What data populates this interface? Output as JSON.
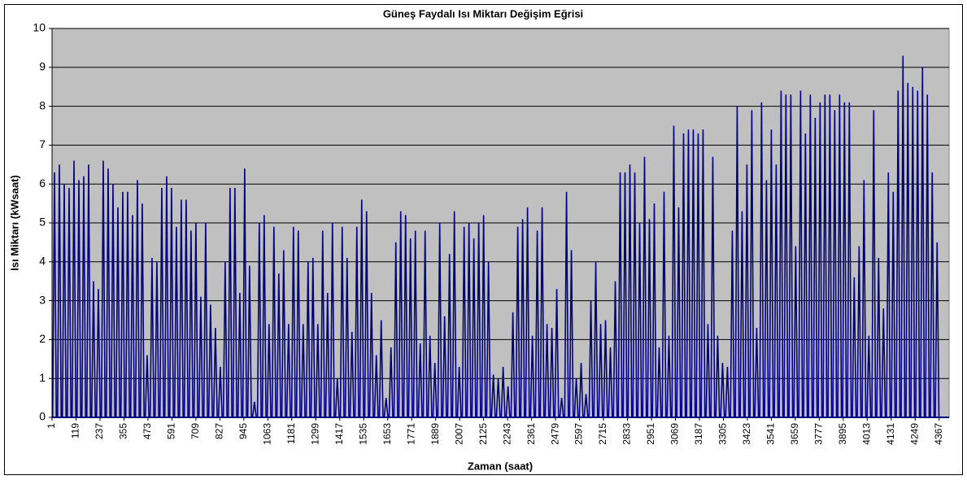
{
  "chart_data": {
    "type": "spike",
    "title": "Güneş Faydalı Isı Miktarı Değişim Eğrisi",
    "x_label": "Zaman (saat)",
    "y_label": "Isı Miktarı (kWsaat)",
    "color": "#000080",
    "plot_background": "#c0c0c0",
    "grid": true,
    "xlim": [
      1,
      4416
    ],
    "ylim": [
      0,
      10
    ],
    "yticks": [
      0,
      1,
      2,
      3,
      4,
      5,
      6,
      7,
      8,
      9,
      10
    ],
    "xticks": [
      1,
      119,
      237,
      355,
      473,
      591,
      709,
      827,
      945,
      1063,
      1181,
      1299,
      1417,
      1535,
      1653,
      1771,
      1889,
      2007,
      2125,
      2243,
      2361,
      2479,
      2597,
      2715,
      2833,
      2951,
      3069,
      3187,
      3305,
      3423,
      3541,
      3659,
      3777,
      3895,
      4013,
      4131,
      4249,
      4367
    ],
    "x": [
      13,
      37,
      61,
      85,
      109,
      133,
      157,
      181,
      205,
      229,
      253,
      277,
      301,
      325,
      349,
      373,
      397,
      421,
      445,
      469,
      493,
      517,
      541,
      565,
      589,
      613,
      637,
      661,
      685,
      709,
      733,
      757,
      781,
      805,
      829,
      853,
      877,
      901,
      925,
      949,
      973,
      997,
      1021,
      1045,
      1069,
      1093,
      1117,
      1141,
      1165,
      1189,
      1213,
      1237,
      1261,
      1285,
      1309,
      1333,
      1357,
      1381,
      1405,
      1429,
      1453,
      1477,
      1501,
      1525,
      1549,
      1573,
      1597,
      1621,
      1645,
      1669,
      1693,
      1717,
      1741,
      1765,
      1789,
      1813,
      1837,
      1861,
      1885,
      1909,
      1933,
      1957,
      1981,
      2005,
      2029,
      2053,
      2077,
      2101,
      2125,
      2149,
      2173,
      2197,
      2221,
      2245,
      2269,
      2293,
      2317,
      2341,
      2365,
      2389,
      2413,
      2437,
      2461,
      2485,
      2509,
      2533,
      2557,
      2581,
      2605,
      2629,
      2653,
      2677,
      2701,
      2725,
      2749,
      2773,
      2797,
      2821,
      2845,
      2869,
      2893,
      2917,
      2941,
      2965,
      2989,
      3013,
      3037,
      3061,
      3085,
      3109,
      3133,
      3157,
      3181,
      3205,
      3229,
      3253,
      3277,
      3301,
      3325,
      3349,
      3373,
      3397,
      3421,
      3445,
      3469,
      3493,
      3517,
      3541,
      3565,
      3589,
      3613,
      3637,
      3661,
      3685,
      3709,
      3733,
      3757,
      3781,
      3805,
      3829,
      3853,
      3877,
      3901,
      3925,
      3949,
      3973,
      3997,
      4021,
      4045,
      4069,
      4093,
      4117,
      4141,
      4165,
      4189,
      4213,
      4237,
      4261,
      4285,
      4309,
      4333,
      4357
    ],
    "values": [
      6.3,
      6.5,
      6.0,
      5.9,
      6.6,
      6.1,
      6.2,
      6.5,
      3.5,
      3.3,
      6.6,
      6.4,
      6.0,
      5.4,
      5.8,
      5.8,
      5.2,
      6.1,
      5.5,
      1.6,
      4.1,
      4.0,
      5.9,
      6.2,
      5.9,
      4.9,
      5.6,
      5.6,
      4.8,
      5.0,
      3.1,
      5.0,
      2.9,
      2.3,
      1.3,
      4.0,
      5.9,
      5.9,
      3.2,
      6.4,
      3.9,
      0.4,
      5.0,
      5.2,
      2.4,
      4.9,
      3.7,
      4.3,
      2.4,
      4.9,
      4.8,
      2.4,
      4.0,
      4.1,
      2.4,
      4.8,
      3.2,
      5.0,
      1.0,
      4.9,
      4.1,
      2.2,
      4.9,
      5.6,
      5.3,
      3.2,
      1.6,
      2.5,
      0.5,
      1.8,
      4.5,
      5.3,
      5.2,
      4.6,
      4.8,
      1.9,
      4.8,
      2.1,
      1.4,
      5.0,
      2.6,
      4.2,
      5.3,
      1.3,
      4.9,
      5.0,
      4.6,
      5.0,
      5.2,
      4.0,
      1.1,
      1.0,
      1.3,
      0.8,
      2.7,
      4.9,
      5.1,
      5.4,
      2.1,
      4.8,
      5.4,
      2.4,
      2.3,
      3.3,
      0.5,
      5.8,
      4.3,
      1.0,
      1.4,
      0.6,
      3.0,
      4.0,
      2.4,
      2.5,
      1.8,
      3.5,
      6.3,
      6.3,
      6.5,
      6.3,
      5.0,
      6.7,
      5.1,
      5.5,
      1.8,
      5.8,
      2.1,
      7.5,
      5.4,
      7.3,
      7.4,
      7.4,
      7.3,
      7.4,
      2.4,
      6.7,
      2.1,
      1.4,
      1.3,
      4.8,
      8.0,
      5.3,
      6.5,
      7.9,
      2.3,
      8.1,
      6.1,
      7.4,
      6.5,
      8.4,
      8.3,
      8.3,
      4.4,
      8.4,
      7.3,
      8.3,
      7.7,
      8.1,
      8.3,
      8.3,
      7.9,
      8.3,
      8.1,
      8.1,
      3.6,
      4.4,
      6.1,
      2.1,
      7.9,
      4.1,
      2.8,
      6.3,
      5.8,
      8.4,
      9.3,
      8.6,
      8.5,
      8.4,
      9.0,
      8.3,
      6.3,
      4.5
    ]
  }
}
